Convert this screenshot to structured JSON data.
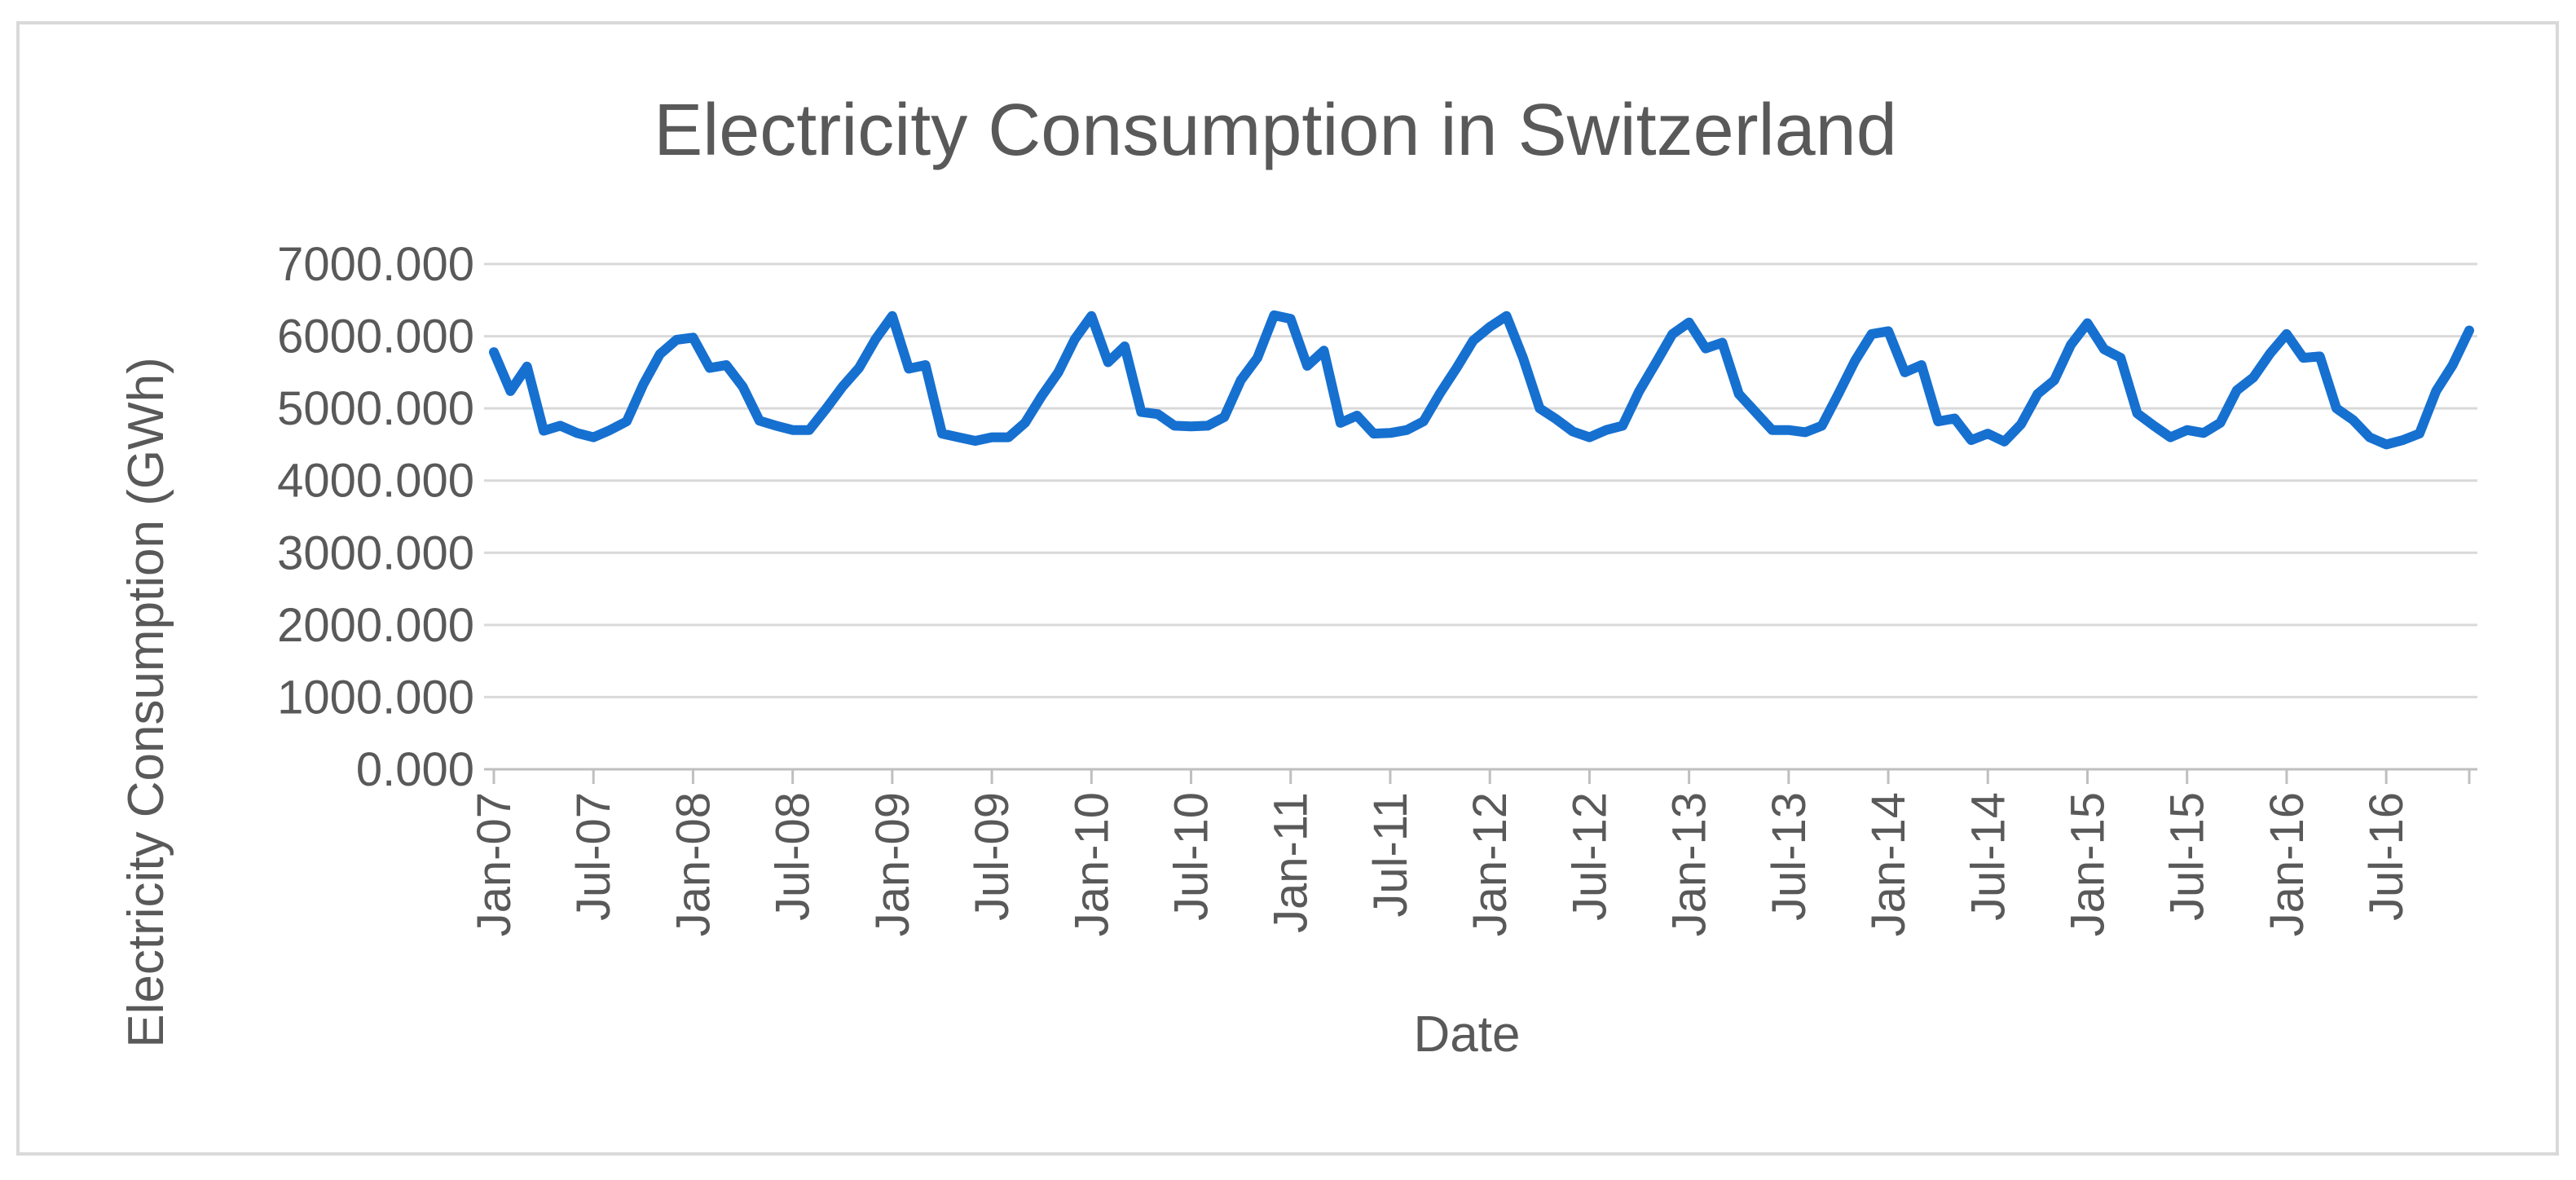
{
  "chart_data": {
    "type": "line",
    "title": "Electricity Consumption in Switzerland",
    "xlabel": "Date",
    "ylabel": "Electricity Consumption (GWh)",
    "ylim": [
      0,
      7000
    ],
    "y_ticks": [
      "0.000",
      "1000.000",
      "2000.000",
      "3000.000",
      "4000.000",
      "5000.000",
      "6000.000",
      "7000.000"
    ],
    "x_tick_labels": [
      "Jan-07",
      "Jul-07",
      "Jan-08",
      "Jul-08",
      "Jan-09",
      "Jul-09",
      "Jan-10",
      "Jul-10",
      "Jan-11",
      "Jul-11",
      "Jan-12",
      "Jul-12",
      "Jan-13",
      "Jul-13",
      "Jan-14",
      "Jul-14",
      "Jan-15",
      "Jul-15",
      "Jan-16",
      "Jul-16"
    ],
    "grid": true,
    "legend": "none",
    "line_color": "#1670d0",
    "series": [
      {
        "name": "Electricity Consumption (GWh)",
        "values": [
          5780,
          5240,
          5580,
          4690,
          4760,
          4660,
          4600,
          4700,
          4820,
          5330,
          5750,
          5950,
          5980,
          5560,
          5600,
          5300,
          4830,
          4760,
          4700,
          4700,
          4990,
          5300,
          5560,
          5960,
          6280,
          5550,
          5600,
          4650,
          4600,
          4550,
          4600,
          4600,
          4800,
          5170,
          5500,
          5960,
          6280,
          5640,
          5860,
          4950,
          4920,
          4760,
          4750,
          4760,
          4880,
          5390,
          5700,
          6290,
          6240,
          5590,
          5800,
          4800,
          4900,
          4650,
          4660,
          4700,
          4820,
          5210,
          5560,
          5940,
          6130,
          6280,
          5700,
          5000,
          4850,
          4680,
          4600,
          4700,
          4760,
          5240,
          5630,
          6030,
          6190,
          5830,
          5910,
          5200,
          4950,
          4700,
          4700,
          4670,
          4760,
          5200,
          5660,
          6030,
          6070,
          5500,
          5600,
          4820,
          4860,
          4560,
          4650,
          4540,
          4780,
          5200,
          5390,
          5880,
          6180,
          5820,
          5700,
          4930,
          4760,
          4600,
          4700,
          4660,
          4800,
          5250,
          5430,
          5760,
          6030,
          5700,
          5720,
          5000,
          4840,
          4600,
          4500,
          4560,
          4650,
          5240,
          5600,
          6080
        ]
      }
    ]
  }
}
